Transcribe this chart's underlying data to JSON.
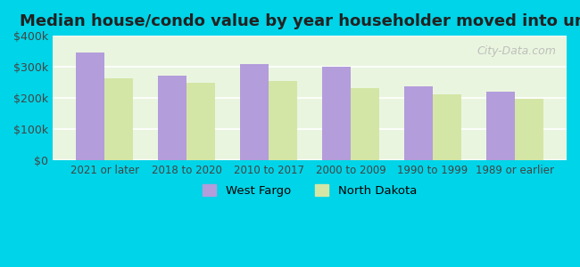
{
  "title": "Median house/condo value by year householder moved into unit",
  "categories": [
    "2021 or later",
    "2018 to 2020",
    "2010 to 2017",
    "2000 to 2009",
    "1990 to 1999",
    "1989 or earlier"
  ],
  "west_fargo": [
    345000,
    272000,
    308000,
    300000,
    237000,
    220000
  ],
  "north_dakota": [
    262000,
    249000,
    255000,
    232000,
    210000,
    196000
  ],
  "west_fargo_color": "#b39ddb",
  "north_dakota_color": "#d4e6a5",
  "background_outer": "#00d4e8",
  "background_inner": "#eaf5e0",
  "ylim": [
    0,
    400000
  ],
  "yticks": [
    0,
    100000,
    200000,
    300000,
    400000
  ],
  "ytick_labels": [
    "$0",
    "$100k",
    "$200k",
    "$300k",
    "$400k"
  ],
  "legend_west_fargo": "West Fargo",
  "legend_north_dakota": "North Dakota",
  "watermark": "City-Data.com",
  "bar_width": 0.35
}
